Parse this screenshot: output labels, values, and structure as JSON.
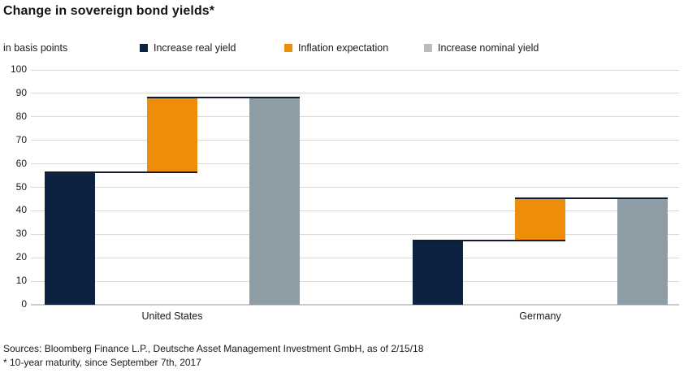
{
  "chart_data": {
    "type": "bar",
    "subtype": "waterfall",
    "title": "Change in sovereign bond yields*",
    "unit_label": "in basis points",
    "categories": [
      "United States",
      "Germany"
    ],
    "series": [
      {
        "name": "Increase real yield",
        "color": "#0d2240",
        "legend_color": "#0d2240",
        "values": [
          56,
          27
        ]
      },
      {
        "name": "Inflation expectation",
        "color": "#ee8d09",
        "legend_color": "#ee8d09",
        "values": [
          32,
          18
        ],
        "base": [
          56,
          27
        ]
      },
      {
        "name": "Increase nominal yield",
        "color": "#8e9ca5",
        "legend_color": "#b7bec3",
        "values": [
          88,
          45
        ]
      }
    ],
    "ylim": [
      0,
      100
    ],
    "ytick_interval": 10,
    "grid": true,
    "legend_position": "top",
    "gridline_color": "#d9d9d9",
    "baseline_color": "#c7cbcd",
    "connector_color": "#0e1c2e"
  },
  "footer": {
    "sources": "Sources: Bloomberg Finance L.P., Deutsche Asset Management Investment GmbH, as of 2/15/18",
    "footnote": "* 10-year maturity, since September 7th, 2017"
  }
}
